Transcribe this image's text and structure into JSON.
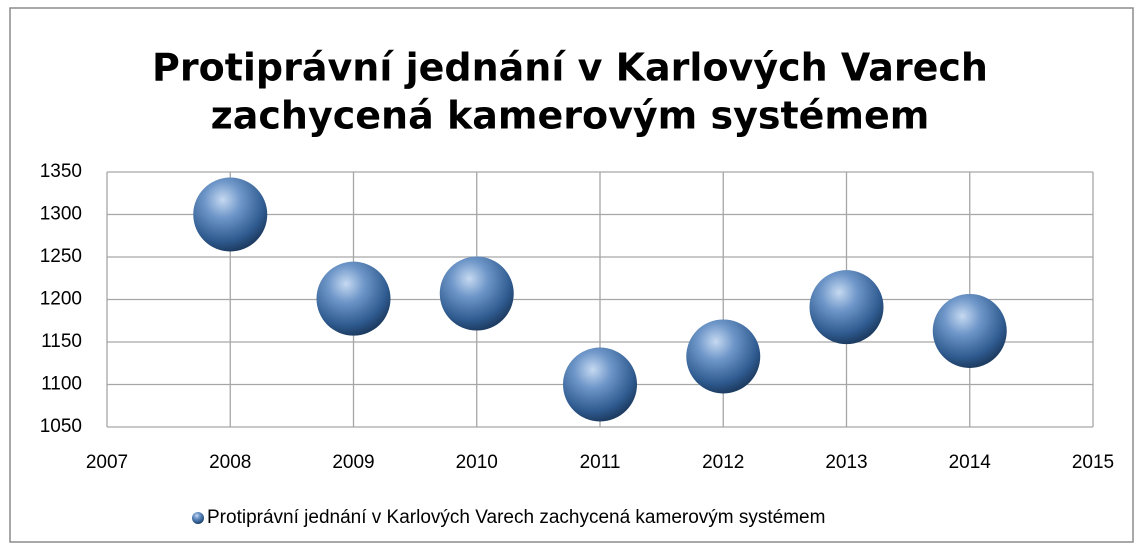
{
  "chart_data": {
    "type": "scatter",
    "title": [
      "Protiprávní jednání v Karlových Varech",
      "zachycená kamerovým systémem"
    ],
    "x": [
      2008,
      2009,
      2010,
      2011,
      2012,
      2013,
      2014
    ],
    "series": [
      {
        "name": "Protiprávní jednání v Karlových Varech zachycená kamerovým systémem",
        "color": "#4f81bd",
        "values": [
          1300,
          1201,
          1207,
          1100,
          1133,
          1191,
          1163
        ]
      }
    ],
    "xlim": [
      2007,
      2015
    ],
    "xticks": [
      2007,
      2008,
      2009,
      2010,
      2011,
      2012,
      2013,
      2014,
      2015
    ],
    "ylim": [
      1050,
      1350
    ],
    "yticks": [
      1050,
      1100,
      1150,
      1200,
      1250,
      1300,
      1350
    ],
    "grid": true,
    "legend": "bottom"
  }
}
